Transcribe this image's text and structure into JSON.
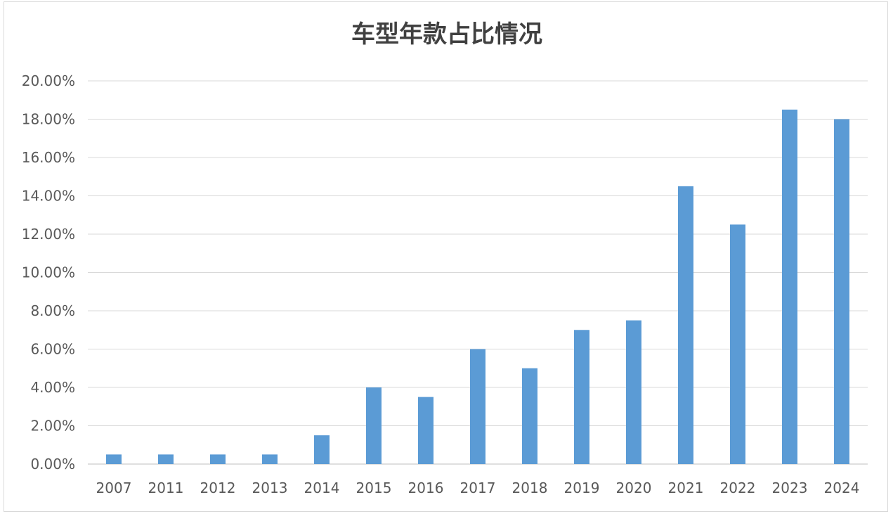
{
  "chart_data": {
    "type": "bar",
    "title": "车型年款占比情况",
    "xlabel": "",
    "ylabel": "",
    "categories": [
      "2007",
      "2011",
      "2012",
      "2013",
      "2014",
      "2015",
      "2016",
      "2017",
      "2018",
      "2019",
      "2020",
      "2021",
      "2022",
      "2023",
      "2024"
    ],
    "values": [
      0.5,
      0.5,
      0.5,
      0.5,
      1.5,
      4.0,
      3.5,
      6.0,
      5.0,
      7.0,
      7.5,
      14.5,
      12.5,
      18.5,
      18.0
    ],
    "value_format": "percent",
    "ylim": [
      0,
      20
    ],
    "yticks": [
      "0.00%",
      "2.00%",
      "4.00%",
      "6.00%",
      "8.00%",
      "10.00%",
      "12.00%",
      "14.00%",
      "16.00%",
      "18.00%",
      "20.00%"
    ],
    "grid": true,
    "legend": "none",
    "bar_color": "#5b9bd5"
  }
}
